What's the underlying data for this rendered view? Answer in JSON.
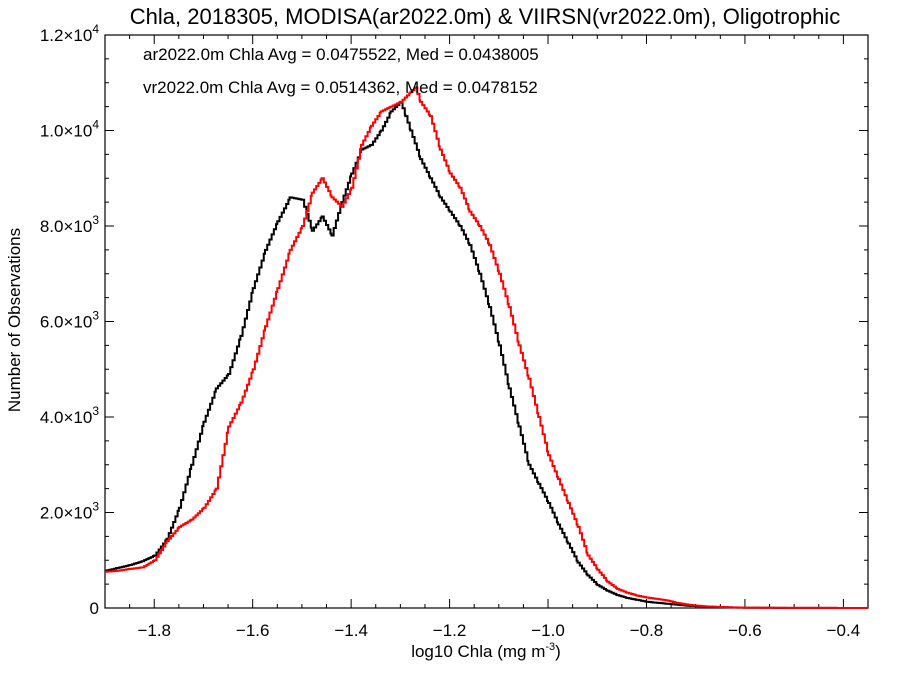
{
  "chart_data": {
    "type": "line",
    "step": true,
    "title": "Chla, 2018305, MODISA(ar2022.0m) & VIIRSN(vr2022.0m), Oligotrophic",
    "xlabel": "log10 Chla (mg m",
    "xlabel_exp": "-3",
    "xlabel_close": ")",
    "ylabel": "Number of Observations",
    "xlim": [
      -1.9,
      -0.35
    ],
    "ylim": [
      0,
      12000
    ],
    "x_ticks": [
      -1.8,
      -1.6,
      -1.4,
      -1.2,
      -1.0,
      -0.8,
      -0.6,
      -0.4
    ],
    "x_tick_labels": [
      "−1.8",
      "−1.6",
      "−1.4",
      "−1.2",
      "−1.0",
      "−0.8",
      "−0.6",
      "−0.4"
    ],
    "y_ticks": [
      {
        "value": 0,
        "mantissa": "0",
        "exp": ""
      },
      {
        "value": 2000,
        "mantissa": "2.0×10",
        "exp": "3"
      },
      {
        "value": 4000,
        "mantissa": "4.0×10",
        "exp": "3"
      },
      {
        "value": 6000,
        "mantissa": "6.0×10",
        "exp": "3"
      },
      {
        "value": 8000,
        "mantissa": "8.0×10",
        "exp": "3"
      },
      {
        "value": 10000,
        "mantissa": "1.0×10",
        "exp": "4"
      },
      {
        "value": 12000,
        "mantissa": "1.2×10",
        "exp": "4"
      }
    ],
    "grid": false,
    "series": [
      {
        "name": "ar2022.0m",
        "color": "#000000",
        "label": "ar2022.0m Chla Avg = 0.0475522, Med = 0.0438005",
        "x": [
          -1.9,
          -1.875,
          -1.85,
          -1.825,
          -1.8,
          -1.775,
          -1.75,
          -1.725,
          -1.7,
          -1.675,
          -1.65,
          -1.625,
          -1.6,
          -1.575,
          -1.55,
          -1.525,
          -1.5,
          -1.48,
          -1.46,
          -1.44,
          -1.42,
          -1.4,
          -1.38,
          -1.36,
          -1.34,
          -1.32,
          -1.3,
          -1.29,
          -1.28,
          -1.26,
          -1.24,
          -1.22,
          -1.2,
          -1.18,
          -1.16,
          -1.14,
          -1.12,
          -1.1,
          -1.08,
          -1.06,
          -1.04,
          -1.02,
          -1.0,
          -0.98,
          -0.96,
          -0.94,
          -0.92,
          -0.9,
          -0.88,
          -0.86,
          -0.84,
          -0.82,
          -0.8,
          -0.78,
          -0.76,
          -0.74,
          -0.72,
          -0.7,
          -0.68,
          -0.66,
          -0.64,
          -0.62,
          -0.6,
          -0.55,
          -0.5,
          -0.45,
          -0.4,
          -0.35
        ],
        "y": [
          780,
          840,
          900,
          980,
          1100,
          1450,
          2100,
          3000,
          3900,
          4600,
          4900,
          5700,
          6700,
          7500,
          8100,
          8600,
          8550,
          7900,
          8200,
          7800,
          8500,
          9100,
          9600,
          9700,
          10000,
          10400,
          10600,
          10300,
          10000,
          9400,
          9000,
          8600,
          8300,
          8000,
          7600,
          7000,
          6300,
          5500,
          4600,
          3800,
          3000,
          2600,
          2200,
          1750,
          1350,
          950,
          680,
          480,
          360,
          270,
          210,
          170,
          130,
          110,
          90,
          70,
          50,
          40,
          30,
          22,
          15,
          10,
          6,
          4,
          3,
          2,
          1,
          0
        ]
      },
      {
        "name": "vr2022.0m",
        "color": "#ff0000",
        "label": "vr2022.0m Chla Avg = 0.0514362, Med = 0.0478152",
        "x": [
          -1.9,
          -1.875,
          -1.85,
          -1.825,
          -1.8,
          -1.775,
          -1.75,
          -1.725,
          -1.7,
          -1.675,
          -1.65,
          -1.625,
          -1.6,
          -1.575,
          -1.55,
          -1.525,
          -1.5,
          -1.48,
          -1.46,
          -1.44,
          -1.42,
          -1.4,
          -1.38,
          -1.36,
          -1.34,
          -1.32,
          -1.3,
          -1.28,
          -1.27,
          -1.26,
          -1.24,
          -1.22,
          -1.2,
          -1.18,
          -1.16,
          -1.14,
          -1.12,
          -1.1,
          -1.08,
          -1.06,
          -1.04,
          -1.02,
          -1.0,
          -0.98,
          -0.96,
          -0.94,
          -0.92,
          -0.9,
          -0.88,
          -0.86,
          -0.84,
          -0.82,
          -0.8,
          -0.78,
          -0.76,
          -0.74,
          -0.72,
          -0.7,
          -0.68,
          -0.66,
          -0.64,
          -0.62,
          -0.6,
          -0.55,
          -0.5,
          -0.45,
          -0.4,
          -0.35
        ],
        "y": [
          760,
          780,
          820,
          850,
          1000,
          1400,
          1700,
          1850,
          2100,
          2500,
          3800,
          4300,
          5000,
          5900,
          6700,
          7500,
          8000,
          8700,
          9000,
          8600,
          8400,
          8800,
          9700,
          10100,
          10400,
          10500,
          10600,
          10800,
          10900,
          10600,
          10300,
          9600,
          9100,
          8800,
          8300,
          8000,
          7600,
          7000,
          6300,
          5500,
          4800,
          4000,
          3200,
          2700,
          2200,
          1700,
          1100,
          800,
          550,
          400,
          320,
          260,
          220,
          190,
          160,
          110,
          75,
          50,
          35,
          25,
          18,
          12,
          8,
          5,
          3,
          2,
          1,
          0
        ]
      }
    ]
  }
}
